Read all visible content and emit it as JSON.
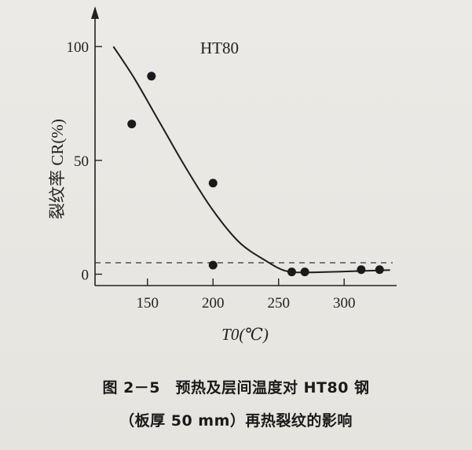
{
  "colors": {
    "ink": "#222222",
    "background": "#e9e7e3"
  },
  "chart_data": {
    "type": "scatter",
    "title": "HT80",
    "xlabel": "T0(℃)",
    "ylabel": "裂纹率 CR(%)",
    "xlim": [
      110,
      340
    ],
    "ylim": [
      -5,
      117
    ],
    "xticks": [
      150,
      200,
      250,
      300
    ],
    "yticks": [
      0,
      50,
      100
    ],
    "grid": false,
    "points": [
      {
        "x": 138,
        "y": 66
      },
      {
        "x": 153,
        "y": 87
      },
      {
        "x": 200,
        "y": 40
      },
      {
        "x": 200,
        "y": 4
      },
      {
        "x": 260,
        "y": 1
      },
      {
        "x": 270,
        "y": 1
      },
      {
        "x": 313,
        "y": 2
      },
      {
        "x": 327,
        "y": 2
      }
    ],
    "curve": [
      {
        "x": 124,
        "y": 100
      },
      {
        "x": 140,
        "y": 86
      },
      {
        "x": 160,
        "y": 66
      },
      {
        "x": 180,
        "y": 46
      },
      {
        "x": 200,
        "y": 28
      },
      {
        "x": 220,
        "y": 14
      },
      {
        "x": 240,
        "y": 6
      },
      {
        "x": 255,
        "y": 1.5
      },
      {
        "x": 270,
        "y": 0.8
      },
      {
        "x": 300,
        "y": 1.2
      },
      {
        "x": 335,
        "y": 1.8
      }
    ],
    "reference_line_y": 0
  },
  "caption": {
    "line1": "图 2－5　预热及层间温度对 HT80 钢",
    "line2": "（板厚 50 mm）再热裂纹的影响"
  }
}
